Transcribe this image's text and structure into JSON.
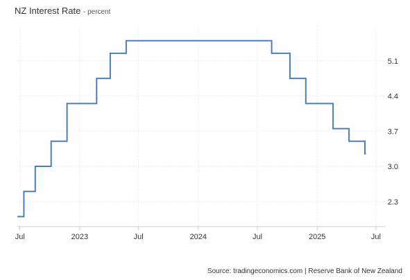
{
  "title": "NZ Interest Rate",
  "subtitle": "- percent",
  "source": "Source: tradingeconomics.com | Reserve Bank of New Zealand",
  "colors": {
    "line": "#4a7ebb",
    "grid": "#e3e3e3",
    "axis": "#cccccc",
    "text": "#333333"
  },
  "chart_data": {
    "type": "line",
    "step": true,
    "title": "NZ Interest Rate",
    "subtitle": "- percent",
    "x_tick_labels": [
      "Jul",
      "2023",
      "Jul",
      "2024",
      "Jul",
      "2025",
      "Jul"
    ],
    "x_ticks": [
      "2022-07-01",
      "2023-01-01",
      "2023-07-01",
      "2024-01-01",
      "2024-07-01",
      "2025-01-01",
      "2025-07-01"
    ],
    "y_ticks": [
      2.3,
      3.0,
      3.7,
      4.4,
      5.1
    ],
    "y_tick_labels": [
      "2.3",
      "3.0",
      "3.7",
      "4.4",
      "5.1"
    ],
    "y_axis_side": "right",
    "xlim": [
      "2022-06-23",
      "2025-07-31"
    ],
    "ylim": [
      1.8,
      5.8
    ],
    "grid": "vertical and horizontal, dotted",
    "series": [
      {
        "x": [
          "2022-06-23",
          "2022-07-13",
          "2022-08-17",
          "2022-10-05",
          "2022-11-23",
          "2023-02-22",
          "2023-04-05",
          "2023-05-24",
          "2024-08-14",
          "2024-10-09",
          "2024-11-27",
          "2025-02-19",
          "2025-04-09",
          "2025-05-28",
          "2025-05-31"
        ],
        "y": [
          2.0,
          2.5,
          3.0,
          3.5,
          4.25,
          4.75,
          5.25,
          5.5,
          5.25,
          4.75,
          4.25,
          3.75,
          3.5,
          3.25,
          3.25
        ]
      }
    ]
  }
}
